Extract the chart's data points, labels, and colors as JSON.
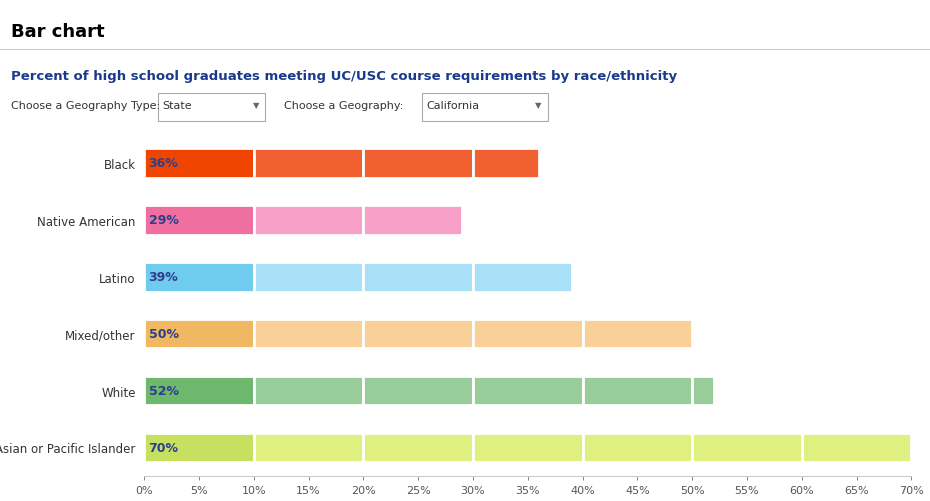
{
  "title": "Bar chart",
  "subtitle": "Percent of high school graduates meeting UC/USC course requirements by race/ethnicity",
  "geo_type_label": "Choose a Geography Type:",
  "geo_type_value": "State",
  "geo_label": "Choose a Geography:",
  "geo_value": "California",
  "categories": [
    "Black",
    "Native American",
    "Latino",
    "Mixed/other",
    "White",
    "Asian or Pacific Islander"
  ],
  "values": [
    36,
    29,
    39,
    50,
    52,
    70
  ],
  "bar_colors_dark": [
    "#f04500",
    "#ee6fa0",
    "#70ccee",
    "#f0b860",
    "#6db86d",
    "#c8e060"
  ],
  "bar_colors_light": [
    "#f06030",
    "#f8a0c8",
    "#a8e0f8",
    "#f8d098",
    "#98cc98",
    "#dff080"
  ],
  "label_color": "#2b3f8c",
  "subtitle_color": "#1a3a8c",
  "title_color": "#000000",
  "axis_max": 70,
  "tick_interval": 5,
  "background_color": "#ffffff",
  "segment_size": 10,
  "bar_height": 0.52,
  "figure_width": 9.3,
  "figure_height": 5.02
}
